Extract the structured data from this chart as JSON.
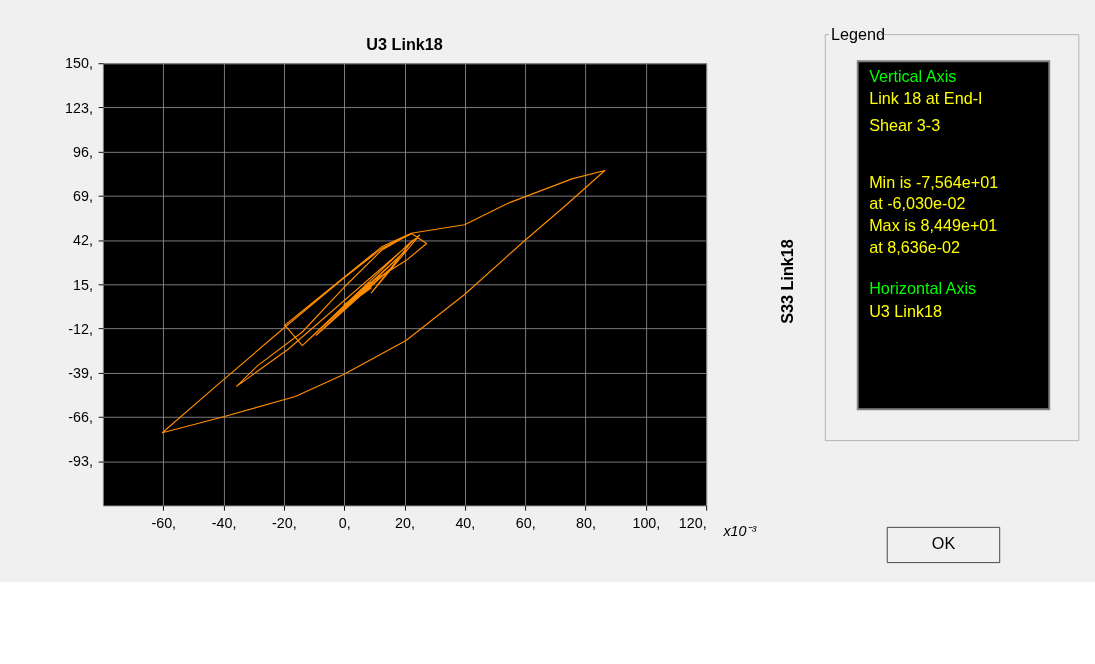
{
  "chart_data": {
    "type": "line",
    "title": "U3 Link18",
    "ylabel": "S33 Link18",
    "xlabel": "x10⁻³",
    "xlim": [
      -80,
      120
    ],
    "ylim": [
      -120,
      150
    ],
    "xticks": [
      {
        "value": -60,
        "label": "-60,"
      },
      {
        "value": -40,
        "label": "-40,"
      },
      {
        "value": -20,
        "label": "-20,"
      },
      {
        "value": 0,
        "label": "0,"
      },
      {
        "value": 20,
        "label": "20,"
      },
      {
        "value": 40,
        "label": "40,"
      },
      {
        "value": 60,
        "label": "60,"
      },
      {
        "value": 80,
        "label": "80,"
      },
      {
        "value": 100,
        "label": "100,"
      },
      {
        "value": 120,
        "label": "120,"
      }
    ],
    "yticks": [
      {
        "value": -93,
        "label": "-93,"
      },
      {
        "value": -66,
        "label": "-66,"
      },
      {
        "value": -39,
        "label": "-39,"
      },
      {
        "value": -12,
        "label": "-12,"
      },
      {
        "value": 15,
        "label": "15,"
      },
      {
        "value": 42,
        "label": "42,"
      },
      {
        "value": 69,
        "label": "69,"
      },
      {
        "value": 96,
        "label": "96,"
      },
      {
        "value": 123,
        "label": "123,"
      },
      {
        "value": 150,
        "label": "150,"
      }
    ],
    "grid": true,
    "legend": false,
    "marker": "none",
    "line_style": "solid",
    "series": [
      {
        "color": "#ff8c00",
        "x": [
          -0.2,
          9.0,
          -0.2,
          15.9,
          -9.3,
          20.5,
          -13.9,
          22.7,
          9.0,
          25.0,
          -18.5,
          -35.7,
          -28.8,
          -13.9,
          -0.2,
          12.4,
          22.2,
          27.3,
          20.5,
          7.8,
          -13.9,
          -19.7,
          12.4,
          22.2,
          39.9,
          54.8,
          75.5,
          86.4,
          73.2,
          59.4,
          39.9,
          20.5,
          -0.2,
          -16.2,
          -40.3,
          -60.3,
          -42.6,
          -20.2,
          -0.2,
          12.4,
          22.7
        ],
        "values": [
          2.6,
          12.9,
          0.5,
          25.4,
          -16.1,
          35.8,
          -22.4,
          42.0,
          9.8,
          45.1,
          -24.5,
          -47.3,
          -34.8,
          -14.1,
          12.9,
          35.8,
          46.2,
          39.9,
          29.5,
          15.0,
          -22.4,
          -9.9,
          37.9,
          46.2,
          51.4,
          64.9,
          79.4,
          84.5,
          62.8,
          41.0,
          8.8,
          -19.3,
          -40.0,
          -53.5,
          -66.0,
          -75.6,
          -47.3,
          -12.0,
          18.7,
          36.8,
          46.2
        ]
      }
    ],
    "annotations": [
      "Legend",
      "Vertical Axis",
      "Link 18 at End-I",
      "Shear 3-3",
      "Min is -7,564e+01",
      "at -6,030e-02",
      "Max is 8,449e+01",
      "at 8,636e-02",
      "Horizontal Axis",
      "U3 Link18",
      "OK"
    ]
  }
}
